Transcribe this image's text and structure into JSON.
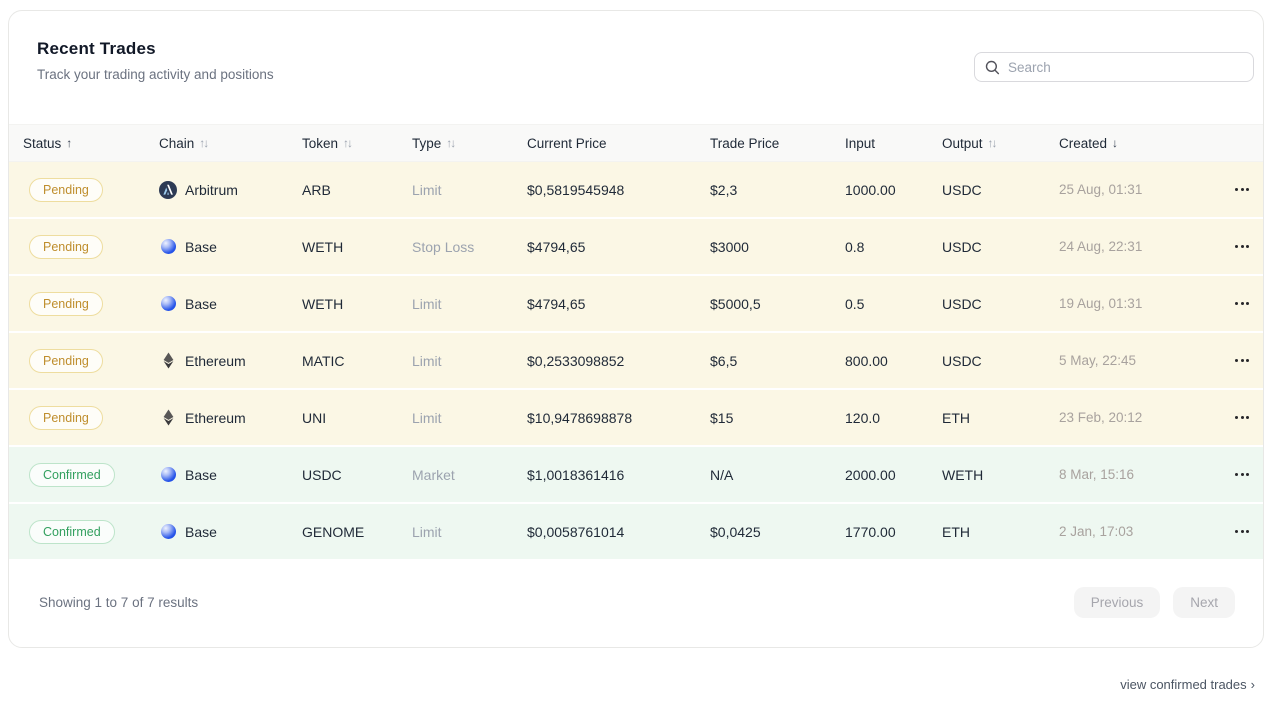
{
  "header": {
    "title": "Recent Trades",
    "subtitle": "Track your trading activity and positions",
    "search_placeholder": "Search"
  },
  "table": {
    "columns": [
      {
        "key": "status",
        "label": "Status",
        "sort": "asc"
      },
      {
        "key": "chain",
        "label": "Chain",
        "sort": "both"
      },
      {
        "key": "token",
        "label": "Token",
        "sort": "both"
      },
      {
        "key": "type",
        "label": "Type",
        "sort": "both"
      },
      {
        "key": "current_price",
        "label": "Current Price",
        "sort": "none"
      },
      {
        "key": "trade_price",
        "label": "Trade Price",
        "sort": "none"
      },
      {
        "key": "input",
        "label": "Input",
        "sort": "none"
      },
      {
        "key": "output",
        "label": "Output",
        "sort": "both"
      },
      {
        "key": "created",
        "label": "Created",
        "sort": "desc"
      },
      {
        "key": "actions",
        "label": "",
        "sort": "none"
      }
    ],
    "rows": [
      {
        "status": "Pending",
        "chain": "Arbitrum",
        "token": "ARB",
        "type": "Limit",
        "current_price": "$0,5819545948",
        "trade_price": "$2,3",
        "input": "1000.00",
        "output": "USDC",
        "created": "25 Aug, 01:31"
      },
      {
        "status": "Pending",
        "chain": "Base",
        "token": "WETH",
        "type": "Stop Loss",
        "current_price": "$4794,65",
        "trade_price": "$3000",
        "input": "0.8",
        "output": "USDC",
        "created": "24 Aug, 22:31"
      },
      {
        "status": "Pending",
        "chain": "Base",
        "token": "WETH",
        "type": "Limit",
        "current_price": "$4794,65",
        "trade_price": "$5000,5",
        "input": "0.5",
        "output": "USDC",
        "created": "19 Aug, 01:31"
      },
      {
        "status": "Pending",
        "chain": "Ethereum",
        "token": "MATIC",
        "type": "Limit",
        "current_price": "$0,2533098852",
        "trade_price": "$6,5",
        "input": "800.00",
        "output": "USDC",
        "created": "5 May, 22:45"
      },
      {
        "status": "Pending",
        "chain": "Ethereum",
        "token": "UNI",
        "type": "Limit",
        "current_price": "$10,9478698878",
        "trade_price": "$15",
        "input": "120.0",
        "output": "ETH",
        "created": "23 Feb, 20:12"
      },
      {
        "status": "Confirmed",
        "chain": "Base",
        "token": "USDC",
        "type": "Market",
        "current_price": "$1,0018361416",
        "trade_price": "N/A",
        "input": "2000.00",
        "output": "WETH",
        "created": "8 Mar, 15:16"
      },
      {
        "status": "Confirmed",
        "chain": "Base",
        "token": "GENOME",
        "type": "Limit",
        "current_price": "$0,0058761014",
        "trade_price": "$0,0425",
        "input": "1770.00",
        "output": "ETH",
        "created": "2 Jan, 17:03"
      }
    ]
  },
  "footer": {
    "showing_text": "Showing 1 to 7 of 7 results",
    "previous_label": "Previous",
    "next_label": "Next"
  },
  "below_card": {
    "link_label": "view confirmed trades",
    "chevron": "›"
  },
  "colors": {
    "pending_row_bg": "#fbf7e5",
    "confirmed_row_bg": "#eef8f1",
    "pending_badge_text": "#bf8e2d",
    "pending_badge_border": "#eedd9f",
    "confirmed_badge_text": "#33a05f",
    "confirmed_badge_border": "#bde4ca",
    "arbitrum_icon_bg": "#2d3a54",
    "base_blue": "#2553e8",
    "ethereum_icon": "#3b3b3d"
  }
}
